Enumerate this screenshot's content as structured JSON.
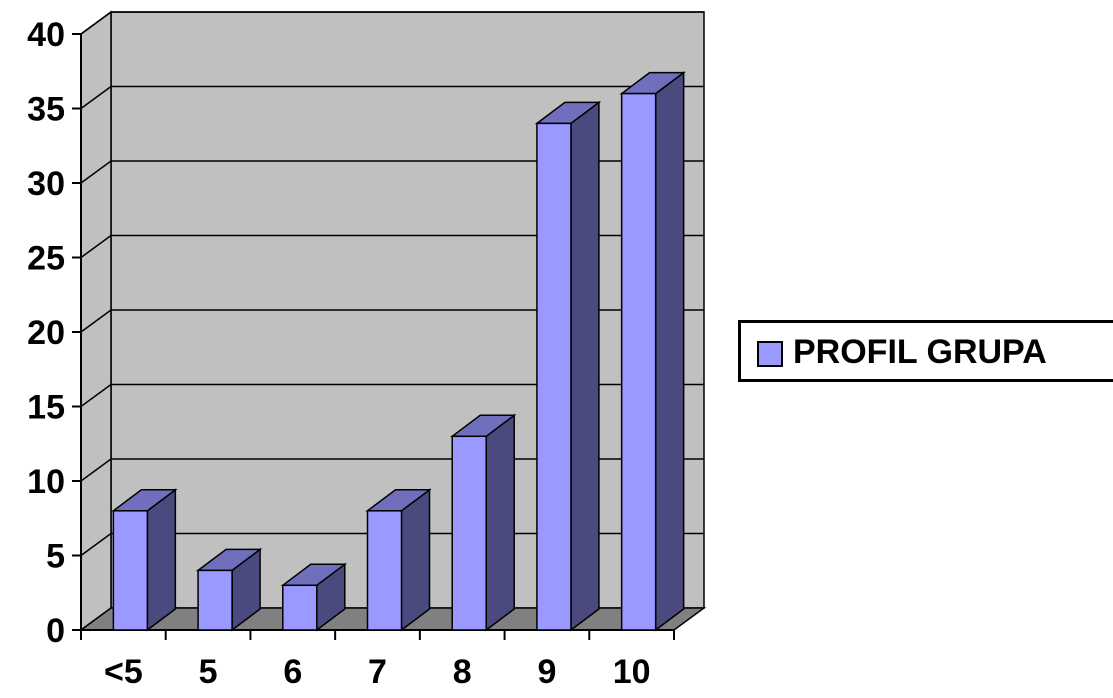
{
  "chart_data": {
    "type": "bar",
    "style": "3d-column",
    "categories": [
      "<5",
      "5",
      "6",
      "7",
      "8",
      "9",
      "10"
    ],
    "series": [
      {
        "name": "PROFIL GRUPA",
        "values": [
          8,
          4,
          3,
          8,
          13,
          34,
          36
        ]
      }
    ],
    "ylim": [
      0,
      40
    ],
    "yticks": [
      0,
      5,
      10,
      15,
      20,
      25,
      30,
      35,
      40
    ],
    "grid": true,
    "legend_position": "right",
    "colors": {
      "bar_front": "#9999ff",
      "bar_side": "#4a4a7e",
      "bar_top": "#6f6fbd",
      "wall": "#c0c0c0",
      "floor": "#808080"
    }
  },
  "legend": {
    "label": "PROFIL GRUPA"
  }
}
